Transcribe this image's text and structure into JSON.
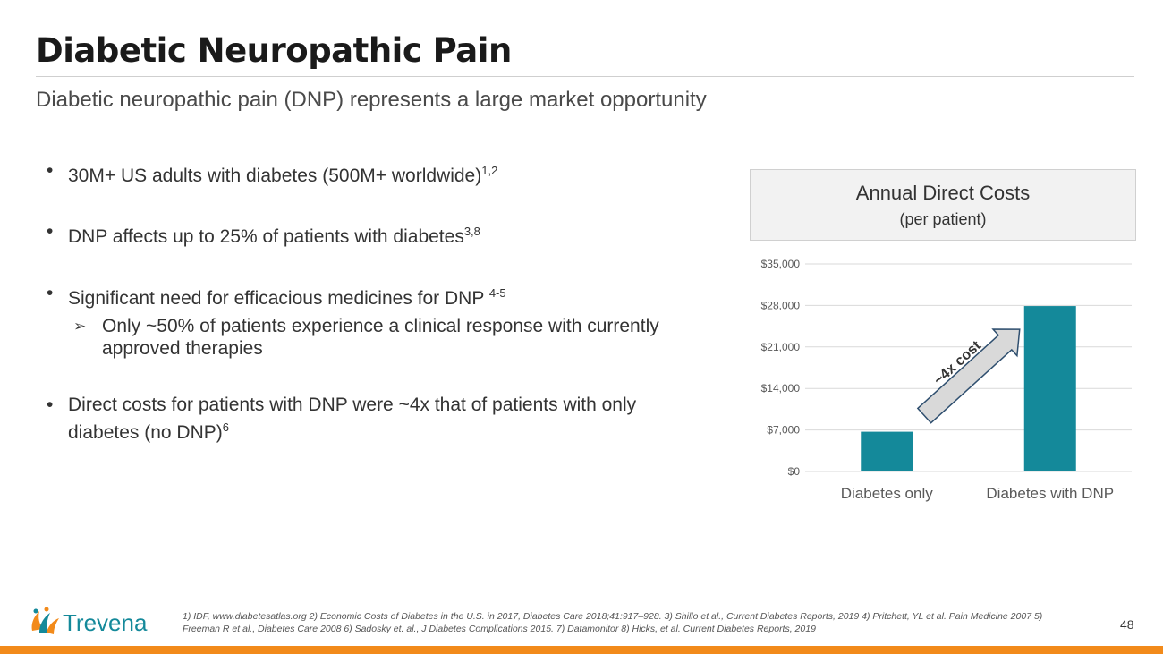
{
  "title": "Diabetic Neuropathic Pain",
  "subtitle": "Diabetic neuropathic pain (DNP) represents a large market opportunity",
  "bullets": [
    {
      "text": "30M+ US adults with diabetes (500M+ worldwide)",
      "sup": "1,2"
    },
    {
      "text": "DNP affects up to 25% of patients with diabetes",
      "sup": "3,8"
    },
    {
      "text": "Significant need for efficacious medicines for DNP ",
      "sup": "4-5",
      "sub": "Only ~50% of patients experience a clinical response with currently approved therapies"
    },
    {
      "text": "Direct costs for patients with DNP were ~4x that of patients with only diabetes (no DNP)",
      "sup": "6"
    }
  ],
  "chart_header": {
    "line1": "Annual Direct Costs",
    "line2": "(per patient)"
  },
  "chart_data": {
    "type": "bar",
    "categories": [
      "Diabetes only",
      "Diabetes with DNP"
    ],
    "values": [
      6700,
      27900
    ],
    "ylim": [
      0,
      35000
    ],
    "yticks": [
      "$0",
      "$7,000",
      "$14,000",
      "$21,000",
      "$28,000",
      "$35,000"
    ],
    "bar_color": "#14899a",
    "annotation": "~4x cost",
    "grid": true
  },
  "references": "1) IDF, www.diabetesatlas.org  2) Economic Costs of Diabetes in the U.S. in 2017, Diabetes Care 2018;41:917–928. 3)  Shillo et al., Current Diabetes Reports, 2019 4) Pritchett, YL et al. Pain Medicine 2007  5) Freeman R et al., Diabetes Care 2008 6) Sadosky et. al., J Diabetes Complications 2015.   7) Datamonitor  8) Hicks, et al.  Current Diabetes Reports, 2019",
  "page_number": "48",
  "logo_text": "Trevena",
  "colors": {
    "accent": "#f28a1a",
    "bar": "#14899a"
  }
}
